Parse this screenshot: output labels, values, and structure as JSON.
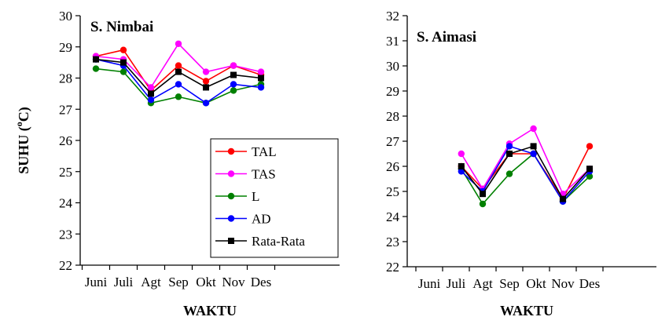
{
  "chart_data": [
    {
      "type": "line",
      "title": "S. Nimbai",
      "xlabel": "WAKTU",
      "ylabel_main": "SUHU (",
      "ylabel_sup": "o",
      "ylabel_tail": "C)",
      "categories": [
        "Juni",
        "Juli",
        "Agt",
        "Sep",
        "Okt",
        "Nov",
        "Des"
      ],
      "ylim": [
        22,
        30
      ],
      "yticks": [
        "22",
        "23",
        "24",
        "25",
        "26",
        "27",
        "28",
        "29",
        "30"
      ],
      "grid": false,
      "legend": "bottom-right",
      "series": [
        {
          "name": "TAL",
          "color": "#ff0000",
          "marker": "circle",
          "values": [
            28.7,
            28.9,
            27.6,
            28.4,
            27.9,
            28.4,
            28.1
          ]
        },
        {
          "name": "TAS",
          "color": "#ff00ff",
          "marker": "circle",
          "values": [
            28.7,
            28.6,
            27.7,
            29.1,
            28.2,
            28.4,
            28.2
          ]
        },
        {
          "name": "L",
          "color": "#008000",
          "marker": "circle",
          "values": [
            28.3,
            28.2,
            27.2,
            27.4,
            27.2,
            27.6,
            27.8
          ]
        },
        {
          "name": "AD",
          "color": "#0000ff",
          "marker": "circle",
          "values": [
            28.6,
            28.4,
            27.3,
            27.8,
            27.2,
            27.8,
            27.7
          ]
        },
        {
          "name": "Rata-Rata",
          "color": "#000000",
          "marker": "square",
          "values": [
            28.6,
            28.5,
            27.5,
            28.2,
            27.7,
            28.1,
            28.0
          ]
        }
      ]
    },
    {
      "type": "line",
      "title": "S. Aimasi",
      "xlabel": "WAKTU",
      "categories": [
        "Juni",
        "Juli",
        "Agt",
        "Sep",
        "Okt",
        "Nov",
        "Des"
      ],
      "ylim": [
        22,
        32
      ],
      "yticks": [
        "22",
        "23",
        "24",
        "25",
        "26",
        "27",
        "28",
        "29",
        "30",
        "31",
        "32"
      ],
      "grid": false,
      "series": [
        {
          "name": "TAL",
          "color": "#ff0000",
          "marker": "circle",
          "x": [
            1.2,
            2,
            3,
            3.9,
            5,
            6
          ],
          "values": [
            26.0,
            25.1,
            26.5,
            26.5,
            24.7,
            26.8
          ]
        },
        {
          "name": "TAS",
          "color": "#ff00ff",
          "marker": "circle",
          "x": [
            1.2,
            2,
            3,
            3.9,
            5,
            6
          ],
          "values": [
            26.5,
            25.1,
            26.9,
            27.5,
            24.9,
            25.9
          ]
        },
        {
          "name": "L",
          "color": "#008000",
          "marker": "circle",
          "x": [
            1.2,
            2,
            3,
            3.9,
            5,
            6
          ],
          "values": [
            25.9,
            24.5,
            25.7,
            26.5,
            24.6,
            25.6
          ]
        },
        {
          "name": "AD",
          "color": "#0000ff",
          "marker": "circle",
          "x": [
            1.2,
            2,
            3,
            3.9,
            5,
            6
          ],
          "values": [
            25.8,
            25.0,
            26.8,
            26.5,
            24.6,
            25.8
          ]
        },
        {
          "name": "Rata-Rata",
          "color": "#000000",
          "marker": "square",
          "x": [
            1.2,
            2,
            3,
            3.9,
            5,
            6
          ],
          "values": [
            26.0,
            24.9,
            26.5,
            26.8,
            24.7,
            25.9
          ]
        }
      ]
    }
  ]
}
